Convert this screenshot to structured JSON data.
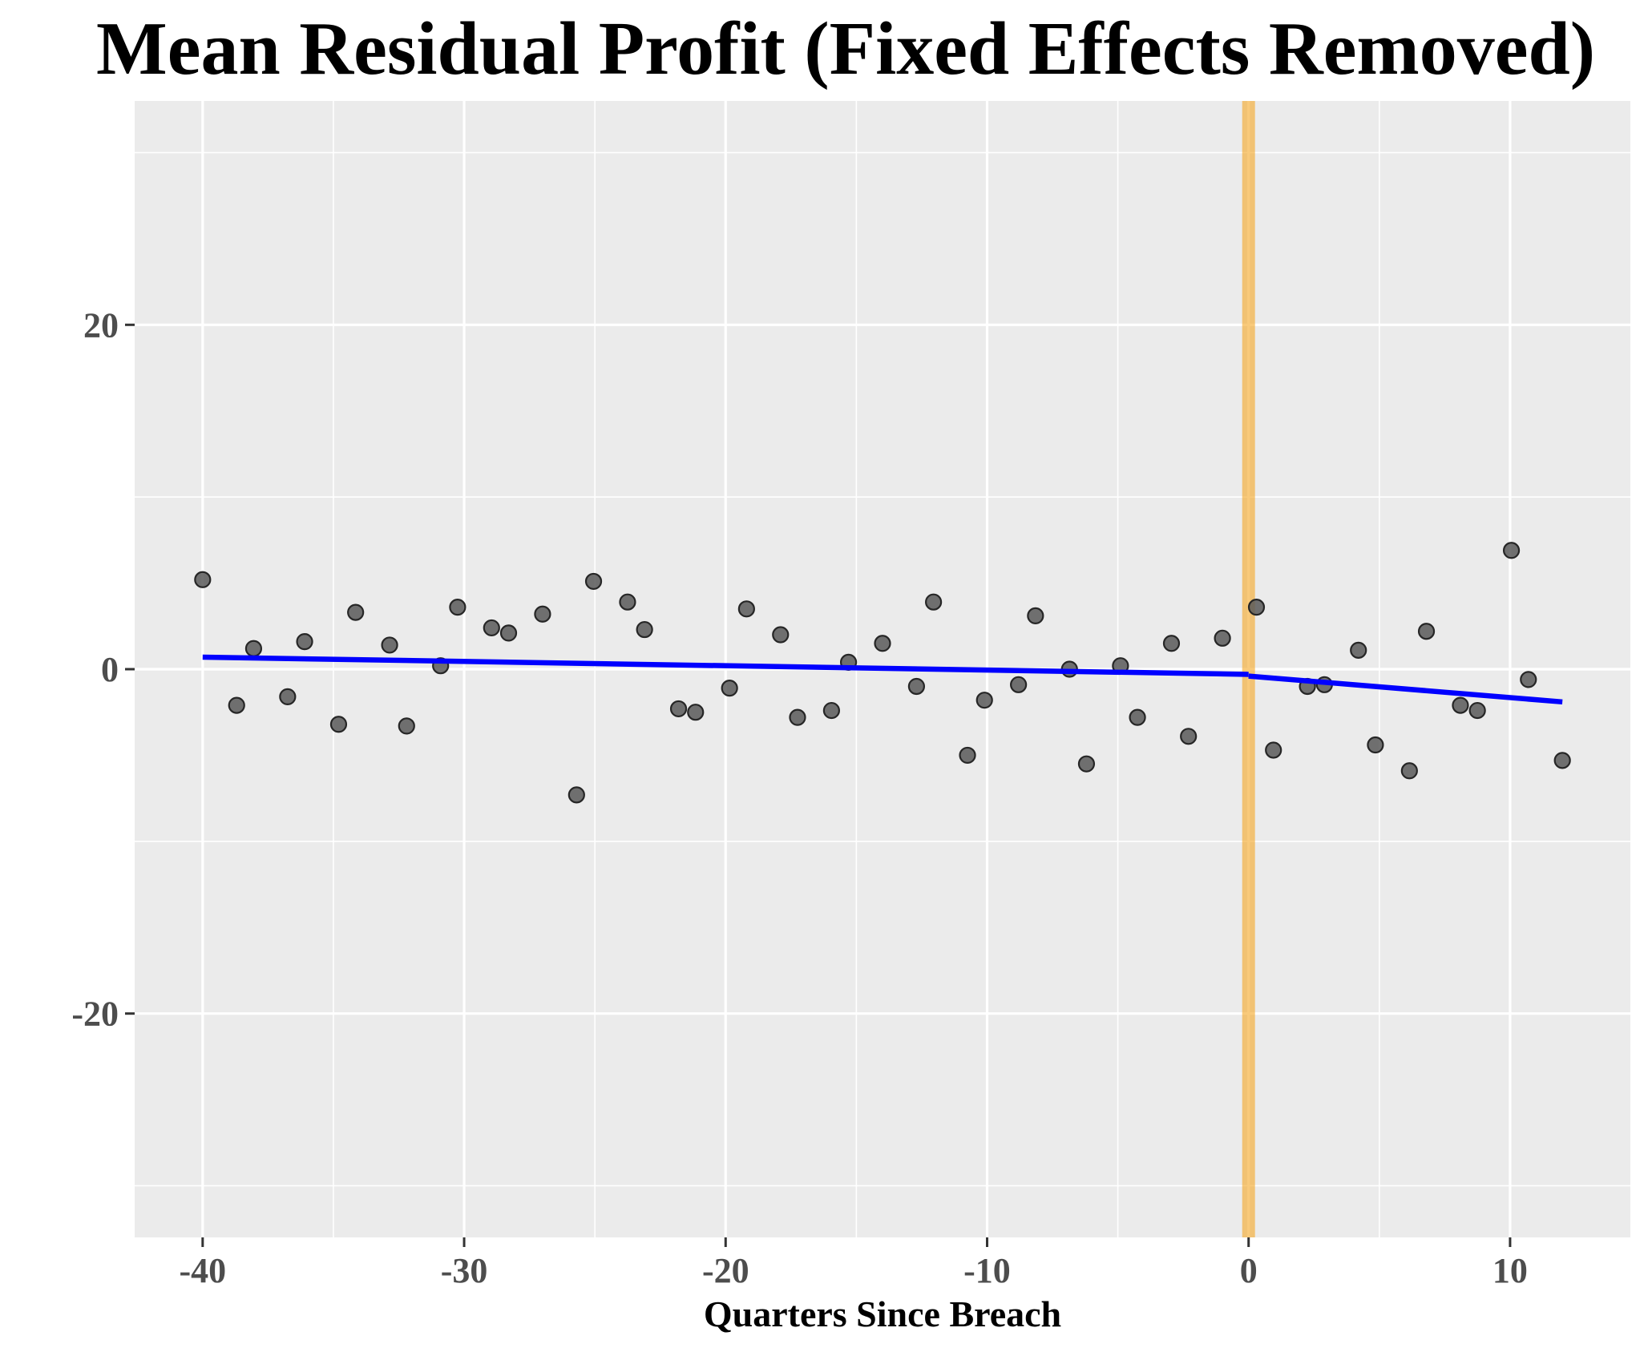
{
  "chart_data": {
    "type": "scatter",
    "title": "Mean Residual Profit (Fixed Effects Removed)",
    "xlabel": "Quarters Since Breach",
    "ylabel": "",
    "xlim": [
      -42.6,
      14.6
    ],
    "ylim": [
      -33,
      33
    ],
    "x_ticks": [
      -40,
      -30,
      -20,
      -10,
      0,
      10
    ],
    "x_tick_labels": [
      "-40",
      "-30",
      "-20",
      "-10",
      "0",
      "10"
    ],
    "y_ticks": [
      -20,
      0,
      20
    ],
    "y_tick_labels": [
      "-20",
      "0",
      "20"
    ],
    "x_minor_ticks": [
      -35,
      -25,
      -15,
      -5,
      5
    ],
    "y_minor_ticks": [
      -30,
      -10,
      10,
      30
    ],
    "grid": true,
    "legend": "none",
    "colors": {
      "panel": "#ebebeb",
      "grid": "#ffffff",
      "points": "#595959",
      "fit": "#0000ff",
      "breach_line": "#f5a623"
    },
    "breach_line": {
      "x": 0
    },
    "points": [
      {
        "x": -40,
        "y": 5.2
      },
      {
        "x": -38.7,
        "y": -2.1
      },
      {
        "x": -38.05,
        "y": 1.2
      },
      {
        "x": -36.75,
        "y": -1.6
      },
      {
        "x": -36.1,
        "y": 1.6
      },
      {
        "x": -34.8,
        "y": -3.2
      },
      {
        "x": -34.15,
        "y": 3.3
      },
      {
        "x": -32.85,
        "y": 1.4
      },
      {
        "x": -32.2,
        "y": -3.3
      },
      {
        "x": -30.9,
        "y": 0.2
      },
      {
        "x": -30.25,
        "y": 3.6
      },
      {
        "x": -28.95,
        "y": 2.4
      },
      {
        "x": -28.3,
        "y": 2.1
      },
      {
        "x": -27,
        "y": 3.2
      },
      {
        "x": -25.7,
        "y": -7.3
      },
      {
        "x": -25.05,
        "y": 5.1
      },
      {
        "x": -23.75,
        "y": 3.9
      },
      {
        "x": -23.1,
        "y": 2.3
      },
      {
        "x": -21.8,
        "y": -2.3
      },
      {
        "x": -21.15,
        "y": -2.5
      },
      {
        "x": -19.85,
        "y": -1.1
      },
      {
        "x": -19.2,
        "y": 3.5
      },
      {
        "x": -17.9,
        "y": 2
      },
      {
        "x": -17.25,
        "y": -2.8
      },
      {
        "x": -15.95,
        "y": -2.4
      },
      {
        "x": -15.3,
        "y": 0.4
      },
      {
        "x": -14,
        "y": 1.5
      },
      {
        "x": -12.7,
        "y": -1
      },
      {
        "x": -12.05,
        "y": 3.9
      },
      {
        "x": -10.75,
        "y": -5
      },
      {
        "x": -10.1,
        "y": -1.8
      },
      {
        "x": -8.8,
        "y": -0.9
      },
      {
        "x": -8.15,
        "y": 3.1
      },
      {
        "x": -6.85,
        "y": 0
      },
      {
        "x": -6.2,
        "y": -5.5
      },
      {
        "x": -4.9,
        "y": 0.2
      },
      {
        "x": -4.25,
        "y": -2.8
      },
      {
        "x": -2.95,
        "y": 1.5
      },
      {
        "x": -2.3,
        "y": -3.9
      },
      {
        "x": -1,
        "y": 1.8
      },
      {
        "x": 0.3,
        "y": 3.6
      },
      {
        "x": 0.95,
        "y": -4.7
      },
      {
        "x": 2.25,
        "y": -1
      },
      {
        "x": 2.9,
        "y": -0.9
      },
      {
        "x": 4.2,
        "y": 1.1
      },
      {
        "x": 4.85,
        "y": -4.4
      },
      {
        "x": 6.15,
        "y": -5.9
      },
      {
        "x": 6.8,
        "y": 2.2
      },
      {
        "x": 8.1,
        "y": -2.1
      },
      {
        "x": 8.75,
        "y": -2.4
      },
      {
        "x": 10.05,
        "y": 6.9
      },
      {
        "x": 10.7,
        "y": -0.6
      },
      {
        "x": 12,
        "y": -5.3
      }
    ],
    "fit_lines": [
      {
        "segment": "pre",
        "x": [
          -40,
          0
        ],
        "y": [
          0.7,
          -0.3
        ]
      },
      {
        "segment": "post",
        "x": [
          0,
          12
        ],
        "y": [
          -0.4,
          -1.9
        ]
      }
    ]
  }
}
